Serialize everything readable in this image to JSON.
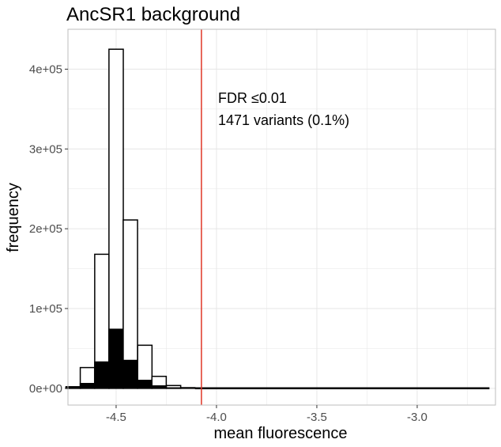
{
  "chart_data": {
    "type": "histogram",
    "title": "AncSR1 background",
    "xlabel": "mean fluorescence",
    "ylabel": "frequency",
    "xlim": [
      -4.74,
      -2.61
    ],
    "ylim": [
      -21000,
      450000
    ],
    "x_ticks": [
      -4.5,
      -4.0,
      -3.5,
      -3.0
    ],
    "x_tick_labels": [
      "-4.5",
      "-4.0",
      "-3.5",
      "-3.0"
    ],
    "y_ticks": [
      0,
      100000,
      200000,
      300000,
      400000
    ],
    "y_tick_labels": [
      "0e+00",
      "1e+05",
      "2e+05",
      "3e+05",
      "4e+05"
    ],
    "grid": true,
    "bin_width": 0.0714,
    "bins": {
      "x_center": [
        -4.714,
        -4.643,
        -4.571,
        -4.5,
        -4.429,
        -4.357,
        -4.286,
        -4.214,
        -4.143
      ],
      "all_variants": [
        2000,
        26000,
        168000,
        425000,
        211000,
        54000,
        15000,
        3500,
        800
      ],
      "filled_subset": [
        1500,
        6000,
        33000,
        74000,
        35000,
        10000,
        3000,
        500,
        0
      ]
    },
    "tail": {
      "x_start": -4.107,
      "x_end": -2.64,
      "value": 300
    },
    "threshold_line": {
      "x": -4.075,
      "color": "#e03526"
    },
    "annotations": [
      "FDR ≤0.01",
      "1471 variants (0.1%)"
    ],
    "colors": {
      "panel_border": "#bdbdbd",
      "grid": "#e6e6e6",
      "bar_outline": "#000000",
      "filled_bar": "#000000",
      "unfilled_bar": "#ffffff"
    }
  }
}
